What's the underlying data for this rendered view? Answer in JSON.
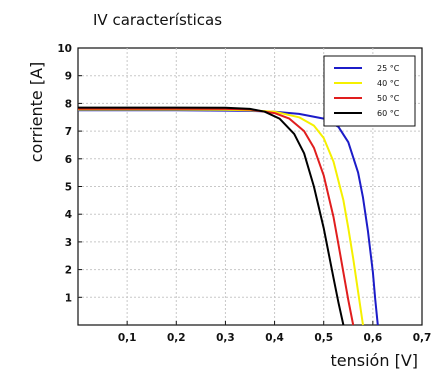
{
  "chart_data": {
    "type": "line",
    "title": "IV características",
    "xlabel": "tensión [V]",
    "ylabel": "corriente [A]",
    "xlim": [
      0,
      0.7
    ],
    "ylim": [
      0,
      10
    ],
    "x_ticks": [
      "0,1",
      "0,2",
      "0,3",
      "0,4",
      "0,5",
      "0,6",
      "0,7"
    ],
    "x_tick_values": [
      0.1,
      0.2,
      0.3,
      0.4,
      0.5,
      0.6,
      0.7
    ],
    "y_ticks": [
      "1",
      "2",
      "3",
      "4",
      "5",
      "6",
      "7",
      "8",
      "9",
      "10"
    ],
    "y_tick_values": [
      1,
      2,
      3,
      4,
      5,
      6,
      7,
      8,
      9,
      10
    ],
    "grid": true,
    "legend_position": "top-right",
    "series": [
      {
        "name": "25 °C",
        "color": "#1c1cc8",
        "x": [
          0,
          0.1,
          0.2,
          0.3,
          0.35,
          0.4,
          0.45,
          0.5,
          0.53,
          0.55,
          0.57,
          0.58,
          0.59,
          0.6,
          0.605,
          0.61
        ],
        "y": [
          7.75,
          7.75,
          7.75,
          7.74,
          7.73,
          7.7,
          7.62,
          7.45,
          7.15,
          6.6,
          5.5,
          4.6,
          3.4,
          1.9,
          0.9,
          0
        ]
      },
      {
        "name": "40 °C",
        "color": "#f5f000",
        "x": [
          0,
          0.1,
          0.2,
          0.3,
          0.35,
          0.4,
          0.45,
          0.48,
          0.5,
          0.52,
          0.54,
          0.55,
          0.56,
          0.57,
          0.58
        ],
        "y": [
          7.78,
          7.78,
          7.78,
          7.77,
          7.75,
          7.7,
          7.5,
          7.2,
          6.75,
          5.9,
          4.5,
          3.5,
          2.4,
          1.2,
          0
        ]
      },
      {
        "name": "50 °C",
        "color": "#e01e1e",
        "x": [
          0,
          0.1,
          0.2,
          0.3,
          0.35,
          0.4,
          0.43,
          0.46,
          0.48,
          0.5,
          0.52,
          0.53,
          0.54,
          0.55,
          0.56
        ],
        "y": [
          7.81,
          7.81,
          7.81,
          7.8,
          7.78,
          7.65,
          7.45,
          7.0,
          6.4,
          5.4,
          3.9,
          2.9,
          1.9,
          0.9,
          0
        ]
      },
      {
        "name": "60 °C",
        "color": "#000000",
        "x": [
          0,
          0.1,
          0.2,
          0.3,
          0.35,
          0.38,
          0.41,
          0.44,
          0.46,
          0.48,
          0.5,
          0.51,
          0.52,
          0.53,
          0.54
        ],
        "y": [
          7.85,
          7.85,
          7.85,
          7.84,
          7.8,
          7.7,
          7.45,
          6.9,
          6.2,
          5.0,
          3.5,
          2.6,
          1.7,
          0.8,
          0
        ]
      }
    ]
  }
}
